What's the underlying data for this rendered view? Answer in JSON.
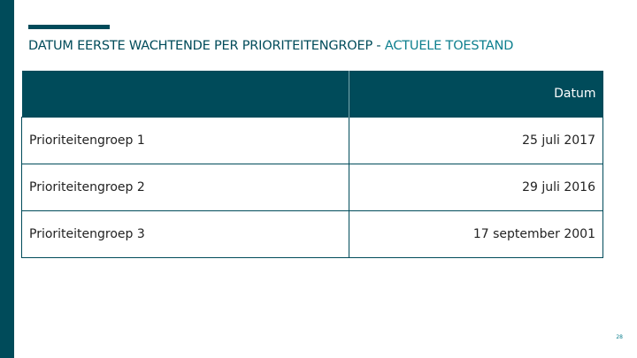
{
  "title": {
    "main": "DATUM EERSTE WACHTENDE PER PRIORITEITENGROEP",
    "separator": " - ",
    "accent": "ACTUELE TOESTAND"
  },
  "table": {
    "header": [
      "",
      "Datum"
    ],
    "rows": [
      [
        "Prioriteitengroep 1",
        "25 juli 2017"
      ],
      [
        "Prioriteitengroep 2",
        "29 juli 2016"
      ],
      [
        "Prioriteitengroep 3",
        "17 september 2001"
      ]
    ]
  },
  "page_number": "28"
}
